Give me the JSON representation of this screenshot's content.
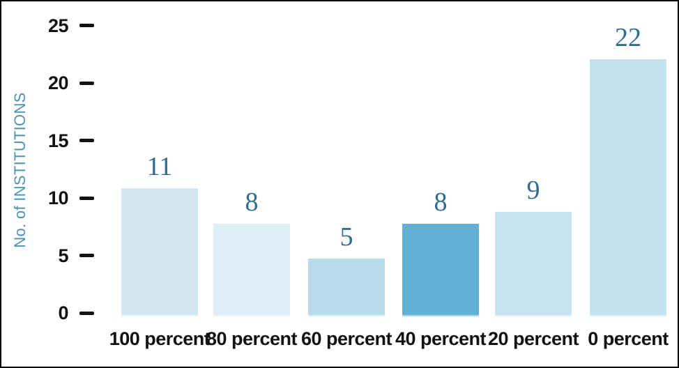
{
  "chart_data": {
    "type": "bar",
    "title": "",
    "xlabel": "",
    "ylabel": "No. of INSTITUTIONS",
    "categories": [
      "100 percent",
      "80 percent",
      "60 percent",
      "40 percent",
      "20 percent",
      "0 percent"
    ],
    "values": [
      11,
      8,
      5,
      8,
      9,
      22
    ],
    "value_labels": [
      "11",
      "8",
      "5",
      "8",
      "9",
      "22"
    ],
    "yticks": [
      0,
      5,
      10,
      15,
      20,
      25
    ],
    "ylim": [
      0,
      25
    ],
    "grid": false,
    "legend": false,
    "bar_colors": [
      "#d3e7f2",
      "#dfedf6",
      "#b7dbeb",
      "#63b0d4",
      "#c8e3f0",
      "#c5e2ef"
    ],
    "value_label_color": "#2d6d8f",
    "ylabel_color": "#4c93b2",
    "axis_text_color": "#121212",
    "background_color": "#ffffff",
    "border_color": "#000000"
  }
}
